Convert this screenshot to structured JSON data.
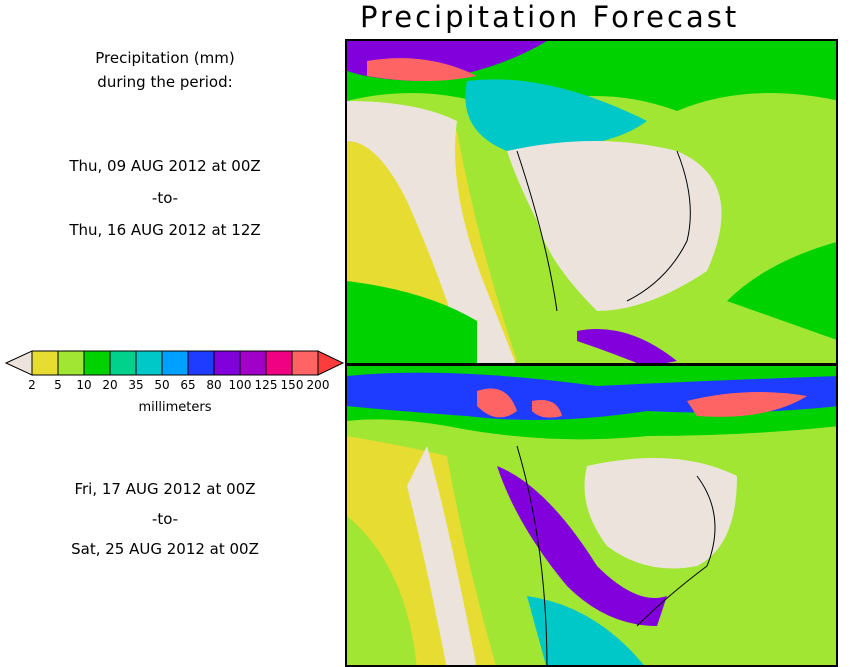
{
  "title": "Precipitation Forecast",
  "legend_heading": [
    "Precipitation (mm)",
    "during the period:"
  ],
  "period1": {
    "start": "Thu, 09 AUG 2012 at 00Z",
    "sep": "-to-",
    "end": "Thu, 16 AUG 2012 at 12Z"
  },
  "period2": {
    "start": "Fri, 17 AUG 2012 at 00Z",
    "sep": "-to-",
    "end": "Sat, 25 AUG 2012 at 00Z"
  },
  "colorbar": {
    "ticks": [
      "2",
      "5",
      "10",
      "20",
      "35",
      "50",
      "65",
      "80",
      "100",
      "125",
      "150",
      "200"
    ],
    "unit": "millimeters",
    "below_color": "#ece4dc",
    "colors": [
      "#e6dc32",
      "#a0e632",
      "#00d200",
      "#00d28c",
      "#00c8c8",
      "#00a0ff",
      "#1e3cff",
      "#8200dc",
      "#a000c8",
      "#f00082",
      "#ff6464"
    ],
    "above_color": "#ff3c3c"
  }
}
